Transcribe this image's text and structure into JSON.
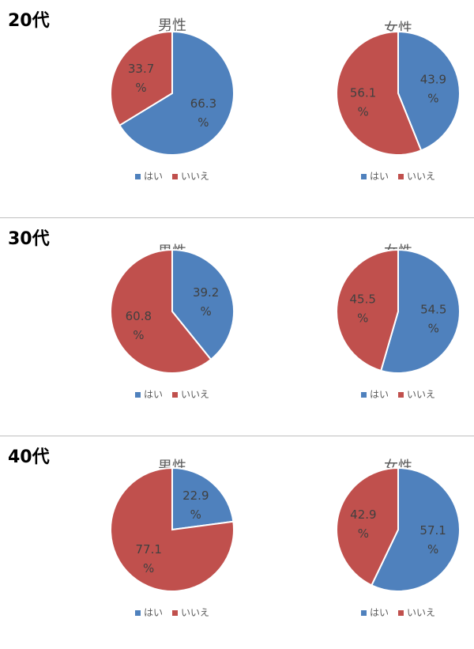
{
  "chart_data": [
    {
      "type": "pie",
      "age": "20代",
      "charts": [
        {
          "title": "男性",
          "categories": [
            "はい",
            "いいえ"
          ],
          "values": [
            66.3,
            33.7
          ],
          "labels": [
            "66.3",
            "33.7"
          ]
        },
        {
          "title": "女性",
          "categories": [
            "はい",
            "いいえ"
          ],
          "values": [
            43.9,
            56.1
          ],
          "labels": [
            "43.9",
            "56.1"
          ]
        }
      ]
    },
    {
      "type": "pie",
      "age": "30代",
      "charts": [
        {
          "title": "男性",
          "categories": [
            "はい",
            "いいえ"
          ],
          "values": [
            39.2,
            60.8
          ],
          "labels": [
            "39.2",
            "60.8"
          ]
        },
        {
          "title": "女性",
          "categories": [
            "はい",
            "いいえ"
          ],
          "values": [
            54.5,
            45.5
          ],
          "labels": [
            "54.5",
            "45.5"
          ]
        }
      ]
    },
    {
      "type": "pie",
      "age": "40代",
      "charts": [
        {
          "title": "男性",
          "categories": [
            "はい",
            "いいえ"
          ],
          "values": [
            22.9,
            77.1
          ],
          "labels": [
            "22.9",
            "77.1"
          ]
        },
        {
          "title": "女性",
          "categories": [
            "はい",
            "いいえ"
          ],
          "values": [
            57.1,
            42.9
          ],
          "labels": [
            "57.1",
            "42.9"
          ]
        }
      ]
    }
  ],
  "unit": "%",
  "legend": [
    "はい",
    "いいえ"
  ],
  "colors": {
    "yes": "#4f81bd",
    "no": "#c0504d"
  }
}
